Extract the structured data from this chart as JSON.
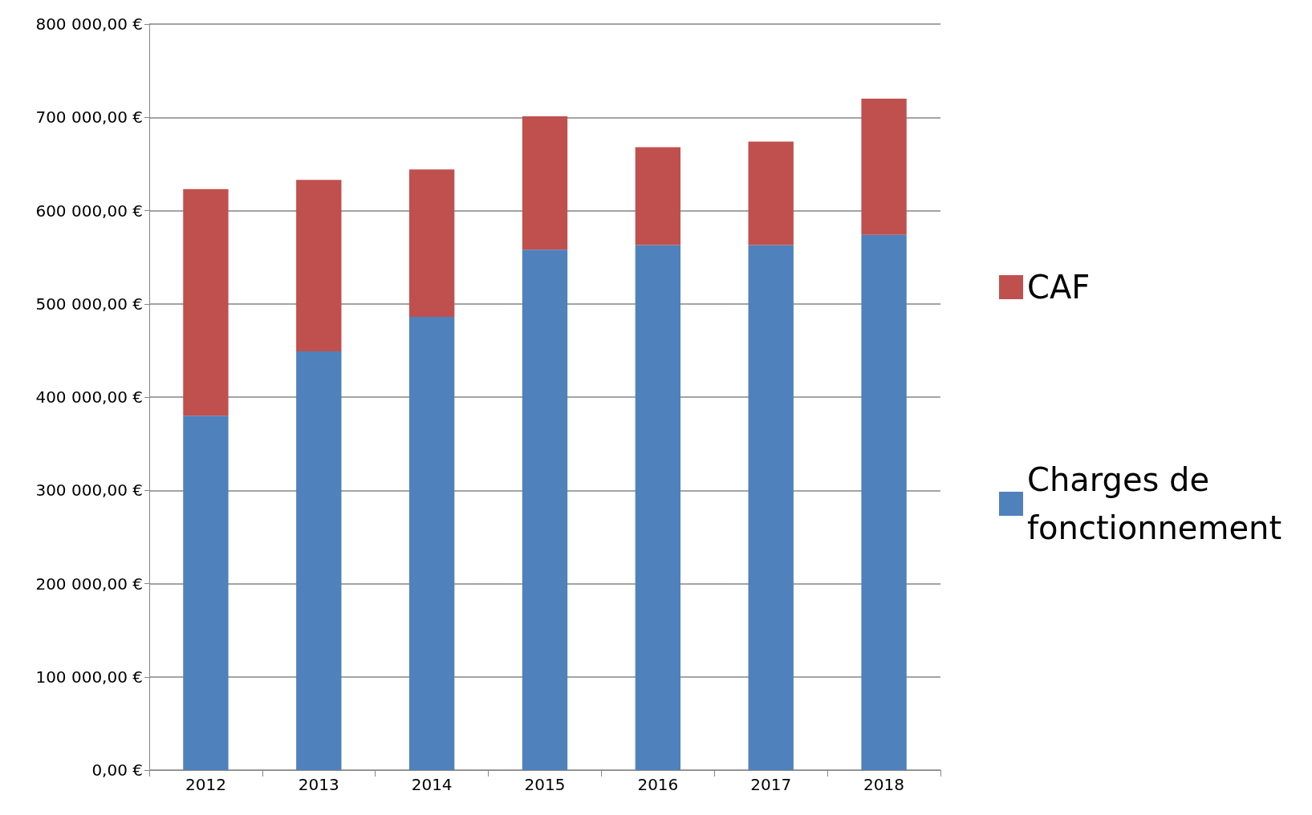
{
  "chart_data": {
    "type": "bar",
    "stacked": true,
    "categories": [
      "2012",
      "2013",
      "2014",
      "2015",
      "2016",
      "2017",
      "2018"
    ],
    "series": [
      {
        "name": "Charges de fonctionnement",
        "color": "#4f81bd",
        "values": [
          380000,
          449000,
          486000,
          558000,
          563000,
          563000,
          574000
        ]
      },
      {
        "name": "CAF",
        "color": "#c0504d",
        "values": [
          243000,
          184000,
          158000,
          143000,
          105000,
          111000,
          146000
        ]
      }
    ],
    "ylim": [
      0,
      800000
    ],
    "yticks": [
      {
        "value": 0,
        "label": "0,00 €"
      },
      {
        "value": 100000,
        "label": "100 000,00 €"
      },
      {
        "value": 200000,
        "label": "200 000,00 €"
      },
      {
        "value": 300000,
        "label": "300 000,00 €"
      },
      {
        "value": 400000,
        "label": "400 000,00 €"
      },
      {
        "value": 500000,
        "label": "500 000,00 €"
      },
      {
        "value": 600000,
        "label": "600 000,00 €"
      },
      {
        "value": 700000,
        "label": "700 000,00 €"
      },
      {
        "value": 800000,
        "label": "800 000,00 €"
      }
    ],
    "grid": "y",
    "legend": "right"
  }
}
